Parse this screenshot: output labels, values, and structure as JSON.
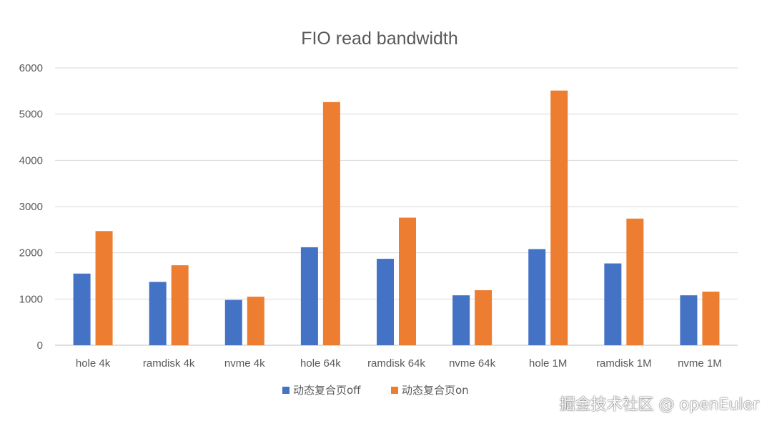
{
  "chart_data": {
    "type": "bar",
    "title": "FIO read bandwidth",
    "categories": [
      "hole 4k",
      "ramdisk 4k",
      "nvme 4k",
      "hole 64k",
      "ramdisk 64k",
      "nvme 64k",
      "hole 1M",
      "ramdisk 1M",
      "nvme 1M"
    ],
    "series": [
      {
        "name": "动态复合页off",
        "color": "#4472C4",
        "values": [
          1550,
          1370,
          980,
          2120,
          1870,
          1080,
          2080,
          1770,
          1080
        ]
      },
      {
        "name": "动态复合页on",
        "color": "#ED7D31",
        "values": [
          2470,
          1730,
          1050,
          5260,
          2760,
          1190,
          5510,
          2740,
          1160
        ]
      }
    ],
    "ylim": [
      0,
      6000
    ],
    "yticks": [
      0,
      1000,
      2000,
      3000,
      4000,
      5000,
      6000
    ],
    "grid": true,
    "legend_position": "bottom",
    "xlabel": "",
    "ylabel": ""
  },
  "watermark": "掘金技术社区 @ openEuler"
}
